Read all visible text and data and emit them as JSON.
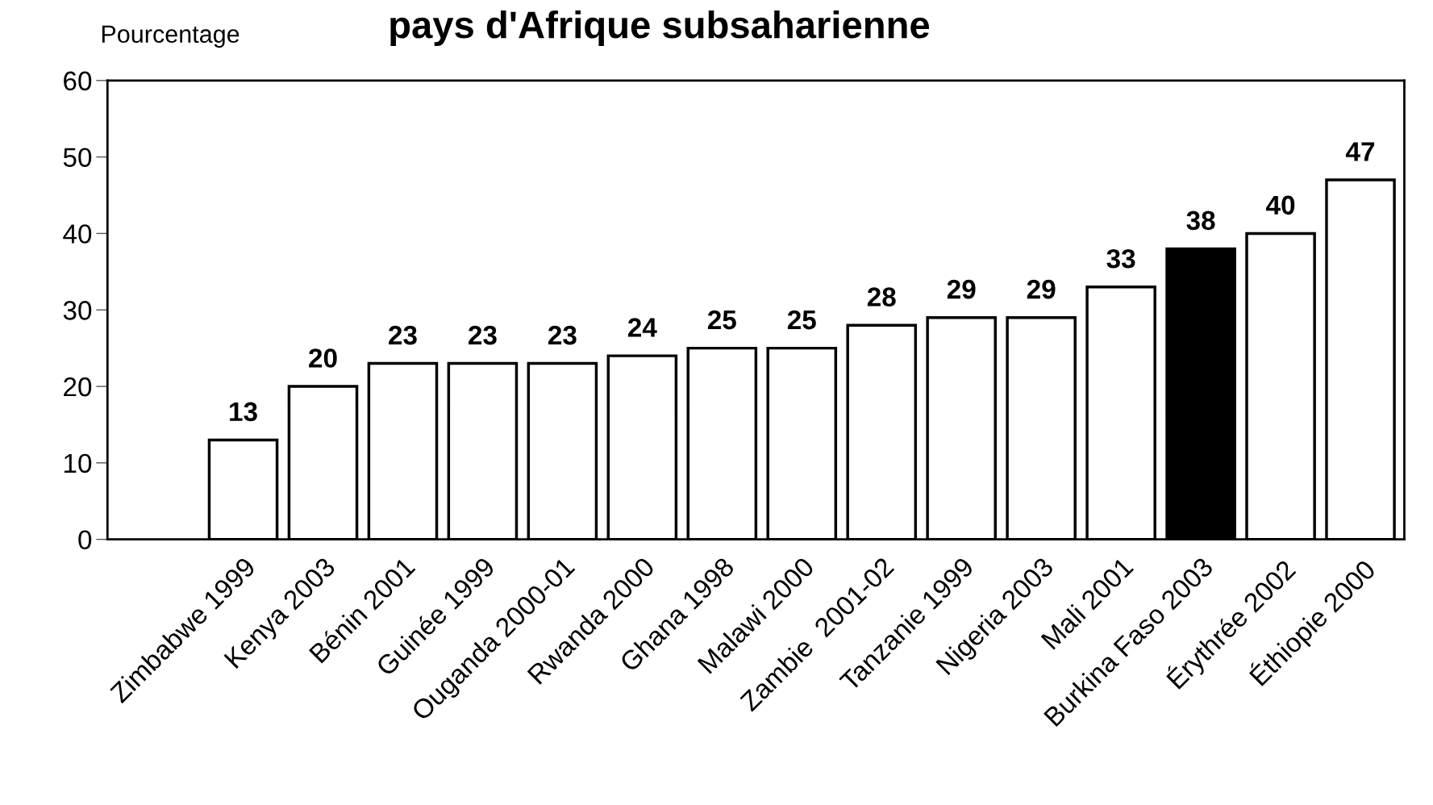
{
  "chart_data": {
    "type": "bar",
    "title": "pays d'Afrique subsaharienne",
    "ylabel": "Pourcentage",
    "categories": [
      "Zimbabwe 1999",
      "Kenya 2003",
      "Bénin 2001",
      "Guinée 1999",
      "Ouganda 2000-01",
      "Rwanda 2000",
      "Ghana 1998",
      "Malawi 2000",
      "Zambie  2001-02",
      "Tanzanie 1999",
      "Nigeria 2003",
      "Mali 2001",
      "Burkina Faso 2003",
      "Érythrée 2002",
      "Éthiopie 2000"
    ],
    "values": [
      13,
      20,
      23,
      23,
      23,
      24,
      25,
      25,
      28,
      29,
      29,
      33,
      38,
      40,
      47
    ],
    "colors": [
      "#ffffff",
      "#ffffff",
      "#ffffff",
      "#ffffff",
      "#ffffff",
      "#ffffff",
      "#ffffff",
      "#ffffff",
      "#ffffff",
      "#ffffff",
      "#ffffff",
      "#ffffff",
      "#000000",
      "#ffffff",
      "#ffffff"
    ],
    "ylim": [
      0,
      60
    ],
    "yticks": [
      0,
      10,
      20,
      30,
      40,
      50,
      60
    ],
    "data_labels": true,
    "grid": false,
    "legend": false
  }
}
